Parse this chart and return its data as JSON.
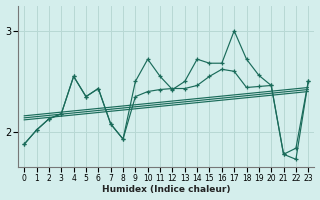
{
  "xlabel": "Humidex (Indice chaleur)",
  "background_color": "#d4eeec",
  "grid_color": "#b8d8d4",
  "line_color": "#1a6b5a",
  "xlim": [
    -0.5,
    23.5
  ],
  "ylim": [
    1.65,
    3.25
  ],
  "yticks": [
    2,
    3
  ],
  "xticks": [
    0,
    1,
    2,
    3,
    4,
    5,
    6,
    7,
    8,
    9,
    10,
    11,
    12,
    13,
    14,
    15,
    16,
    17,
    18,
    19,
    20,
    21,
    22,
    23
  ],
  "series1_x": [
    0,
    1,
    2,
    3,
    4,
    5,
    6,
    7,
    8,
    9,
    10,
    11,
    12,
    13,
    14,
    15,
    16,
    17,
    18,
    19,
    20,
    21,
    22,
    23
  ],
  "series1_y": [
    1.88,
    2.02,
    2.13,
    2.18,
    2.55,
    2.35,
    2.43,
    2.08,
    1.93,
    2.35,
    2.4,
    2.42,
    2.43,
    2.43,
    2.46,
    2.55,
    2.62,
    2.6,
    2.44,
    2.45,
    2.46,
    1.78,
    1.84,
    2.5
  ],
  "series2_x": [
    0,
    1,
    2,
    3,
    4,
    5,
    6,
    7,
    8,
    9,
    10,
    11,
    12,
    13,
    14,
    15,
    16,
    17,
    18,
    19,
    20,
    21,
    22,
    23
  ],
  "series2_y": [
    1.88,
    2.02,
    2.13,
    2.18,
    2.55,
    2.35,
    2.43,
    2.08,
    1.93,
    2.5,
    2.72,
    2.55,
    2.42,
    2.5,
    2.72,
    2.68,
    2.68,
    3.0,
    2.72,
    2.56,
    2.46,
    1.78,
    1.73,
    2.5
  ],
  "trend_starts": [
    2.12,
    2.14,
    2.16
  ],
  "trend_ends": [
    2.4,
    2.42,
    2.44
  ]
}
